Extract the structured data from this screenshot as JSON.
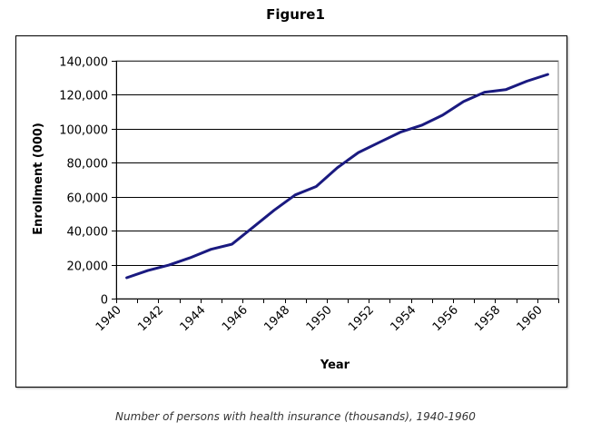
{
  "figure_title": "Figure1",
  "caption": "Number of persons with health insurance (thousands), 1940-1960",
  "chart_data": {
    "type": "line",
    "title": "Figure1",
    "xlabel": "Year",
    "ylabel": "Enrollment (000)",
    "xlim": [
      1940,
      1961
    ],
    "ylim": [
      0,
      140000
    ],
    "xticks": [
      1940,
      1942,
      1944,
      1946,
      1948,
      1950,
      1952,
      1954,
      1956,
      1958,
      1960
    ],
    "yticks": [
      0,
      20000,
      40000,
      60000,
      80000,
      100000,
      120000,
      140000
    ],
    "ytick_labels": [
      "0",
      "20,000",
      "40,000",
      "60,000",
      "80,000",
      "100,000",
      "120,000",
      "140,000"
    ],
    "grid": "horizontal",
    "line_color": "#1a1a80",
    "series": [
      {
        "name": "Enrollment",
        "x": [
          1940.5,
          1941.5,
          1942.5,
          1943.5,
          1944.5,
          1945.5,
          1946.5,
          1947.5,
          1948.5,
          1949.5,
          1950.5,
          1951.5,
          1952.5,
          1953.5,
          1954.5,
          1955.5,
          1956.5,
          1957.5,
          1958.5,
          1959.5,
          1960.5
        ],
        "values": [
          12300,
          16500,
          19700,
          24000,
          29000,
          32000,
          42000,
          52000,
          61000,
          66000,
          77000,
          86000,
          92000,
          98000,
          102000,
          108000,
          116000,
          121500,
          123000,
          128000,
          132000
        ]
      }
    ]
  }
}
